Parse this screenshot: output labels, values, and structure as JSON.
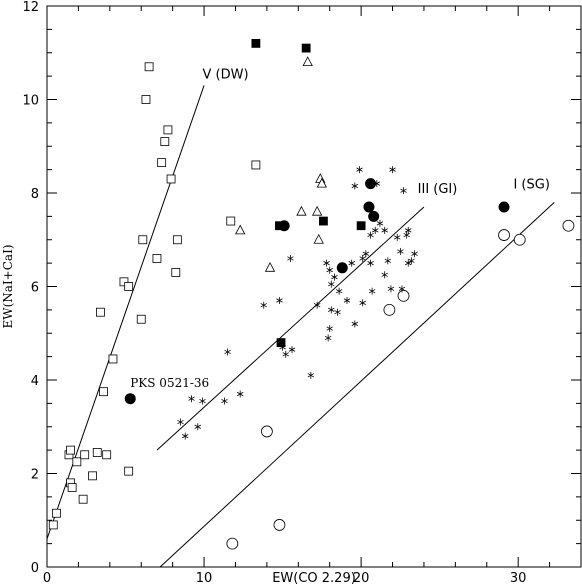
{
  "chart_data": {
    "type": "scatter",
    "xlabel": "EW(CO 2.29)",
    "ylabel": "EW(NaI+CaI)",
    "xlim": [
      0,
      34
    ],
    "ylim": [
      0,
      12
    ],
    "xticks": [
      0,
      10,
      20,
      30
    ],
    "yticks": [
      0,
      2,
      4,
      6,
      8,
      10,
      12
    ],
    "grid": false,
    "lines": [
      {
        "label": "V (DW)",
        "x": [
          0,
          10.0
        ],
        "y": [
          0.6,
          10.3
        ]
      },
      {
        "label": "III (GI)",
        "x": [
          7.0,
          24.0
        ],
        "y": [
          2.5,
          7.7
        ]
      },
      {
        "label": "I (SG)",
        "x": [
          7.2,
          32.3
        ],
        "y": [
          0.0,
          7.8
        ]
      }
    ],
    "annotations": [
      {
        "text": "PKS 0521-36",
        "x": 5.3,
        "y": 3.85
      }
    ],
    "series": [
      {
        "marker": "open-square",
        "points": [
          [
            0.4,
            0.9
          ],
          [
            0.6,
            1.15
          ],
          [
            1.4,
            2.4
          ],
          [
            1.5,
            2.5
          ],
          [
            1.5,
            1.8
          ],
          [
            1.6,
            1.7
          ],
          [
            1.9,
            2.25
          ],
          [
            2.3,
            1.45
          ],
          [
            2.4,
            2.4
          ],
          [
            2.9,
            1.95
          ],
          [
            3.2,
            2.45
          ],
          [
            3.8,
            2.4
          ],
          [
            3.6,
            3.75
          ],
          [
            3.4,
            5.45
          ],
          [
            4.2,
            4.45
          ],
          [
            4.9,
            6.1
          ],
          [
            5.2,
            6.0
          ],
          [
            5.2,
            2.05
          ],
          [
            6.0,
            5.3
          ],
          [
            6.1,
            7.0
          ],
          [
            6.3,
            10.0
          ],
          [
            6.5,
            10.7
          ],
          [
            7.0,
            6.6
          ],
          [
            7.3,
            8.65
          ],
          [
            7.5,
            9.1
          ],
          [
            7.7,
            9.35
          ],
          [
            7.9,
            8.3
          ],
          [
            8.2,
            6.3
          ],
          [
            8.3,
            7.0
          ],
          [
            11.7,
            7.4
          ],
          [
            13.3,
            8.6
          ]
        ]
      },
      {
        "marker": "open-triangle",
        "points": [
          [
            12.3,
            7.2
          ],
          [
            14.2,
            6.4
          ],
          [
            16.2,
            7.6
          ],
          [
            16.6,
            10.8
          ],
          [
            17.2,
            7.6
          ],
          [
            17.3,
            7.0
          ],
          [
            17.4,
            8.3
          ],
          [
            17.5,
            8.2
          ]
        ]
      },
      {
        "marker": "filled-square",
        "points": [
          [
            13.3,
            11.2
          ],
          [
            14.8,
            7.3
          ],
          [
            14.9,
            4.8
          ],
          [
            16.5,
            11.1
          ],
          [
            17.6,
            7.4
          ],
          [
            20.0,
            7.3
          ]
        ]
      },
      {
        "marker": "filled-circle",
        "points": [
          [
            5.3,
            3.6
          ],
          [
            15.1,
            7.3
          ],
          [
            18.8,
            6.4
          ],
          [
            20.5,
            7.7
          ],
          [
            20.6,
            8.2
          ],
          [
            20.8,
            7.5
          ],
          [
            29.1,
            7.7
          ]
        ]
      },
      {
        "marker": "open-circle",
        "points": [
          [
            11.8,
            0.5
          ],
          [
            14.0,
            2.9
          ],
          [
            14.8,
            0.9
          ],
          [
            21.8,
            5.5
          ],
          [
            22.7,
            5.8
          ],
          [
            29.1,
            7.1
          ],
          [
            30.1,
            7.0
          ],
          [
            33.2,
            7.3
          ]
        ]
      },
      {
        "marker": "asterisk",
        "points": [
          [
            8.5,
            3.1
          ],
          [
            8.8,
            2.8
          ],
          [
            9.2,
            3.6
          ],
          [
            9.6,
            3.0
          ],
          [
            9.9,
            3.55
          ],
          [
            11.3,
            3.55
          ],
          [
            11.5,
            4.6
          ],
          [
            12.3,
            3.7
          ],
          [
            13.8,
            5.6
          ],
          [
            14.8,
            5.7
          ],
          [
            15.0,
            4.7
          ],
          [
            15.2,
            4.55
          ],
          [
            15.6,
            4.65
          ],
          [
            15.5,
            6.6
          ],
          [
            16.8,
            4.1
          ],
          [
            17.2,
            5.6
          ],
          [
            17.8,
            6.5
          ],
          [
            17.9,
            4.9
          ],
          [
            18.0,
            5.1
          ],
          [
            18.0,
            6.35
          ],
          [
            18.1,
            5.5
          ],
          [
            18.1,
            6.05
          ],
          [
            18.3,
            6.2
          ],
          [
            18.5,
            5.45
          ],
          [
            18.6,
            5.9
          ],
          [
            19.1,
            5.7
          ],
          [
            19.4,
            6.5
          ],
          [
            19.6,
            5.2
          ],
          [
            19.9,
            8.5
          ],
          [
            19.6,
            8.15
          ],
          [
            20.1,
            5.65
          ],
          [
            20.1,
            6.6
          ],
          [
            20.3,
            6.7
          ],
          [
            20.6,
            6.5
          ],
          [
            20.7,
            5.9
          ],
          [
            20.6,
            7.1
          ],
          [
            20.9,
            7.2
          ],
          [
            21.0,
            8.2
          ],
          [
            21.2,
            7.35
          ],
          [
            21.5,
            7.2
          ],
          [
            21.5,
            6.25
          ],
          [
            21.7,
            6.55
          ],
          [
            21.9,
            5.95
          ],
          [
            22.0,
            8.5
          ],
          [
            22.3,
            7.05
          ],
          [
            22.5,
            6.75
          ],
          [
            22.6,
            5.95
          ],
          [
            22.7,
            8.05
          ],
          [
            22.9,
            7.1
          ],
          [
            23.0,
            6.5
          ],
          [
            23.0,
            7.2
          ],
          [
            23.2,
            6.55
          ],
          [
            23.4,
            6.7
          ]
        ]
      }
    ]
  }
}
